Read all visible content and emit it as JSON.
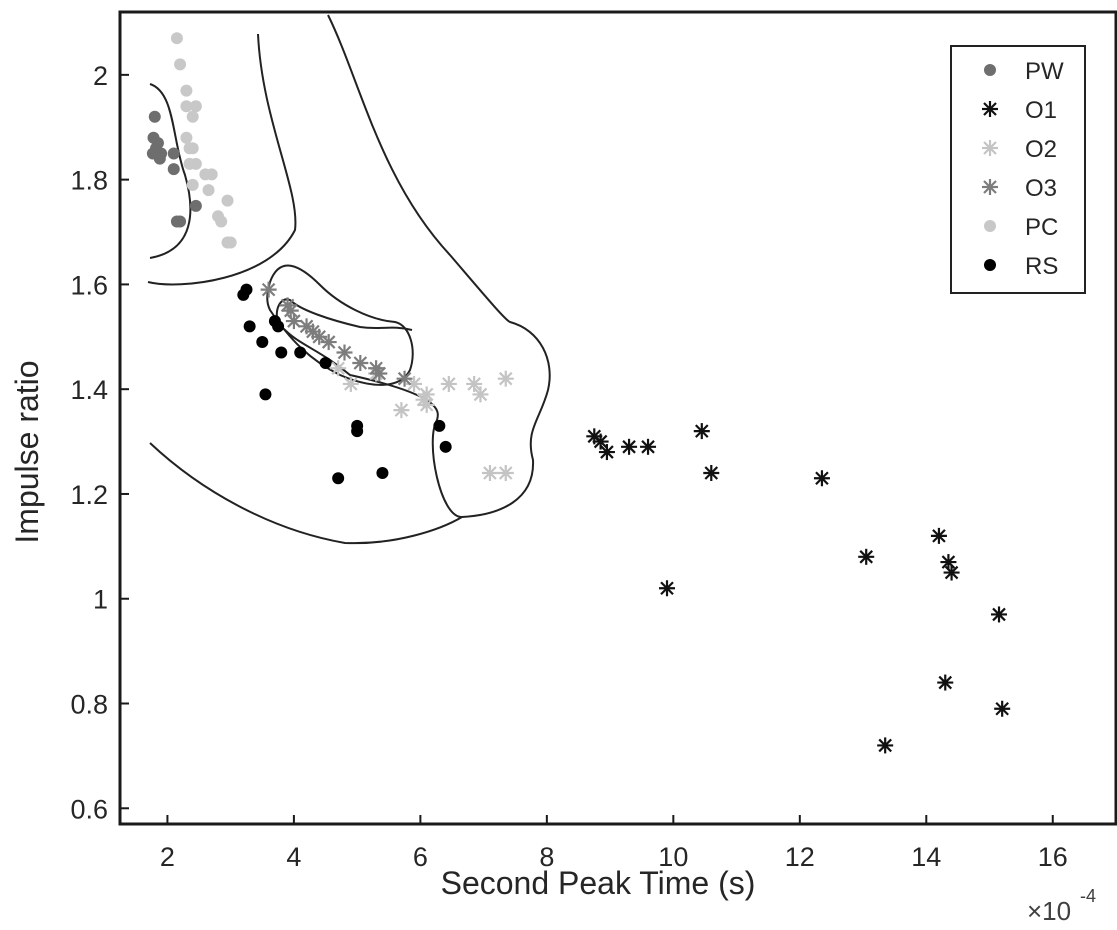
{
  "chart_data": {
    "type": "scatter",
    "xlabel": "Second Peak Time (s)",
    "ylabel": "Impulse ratio",
    "x_multiplier": "×10",
    "x_multiplier_exponent": "-4",
    "xlim": [
      1.25,
      17.0
    ],
    "ylim": [
      0.57,
      2.12
    ],
    "x_ticks": [
      2,
      4,
      6,
      8,
      10,
      12,
      14,
      16
    ],
    "x_tick_labels": [
      "2",
      "4",
      "6",
      "8",
      "10",
      "12",
      "14",
      "16"
    ],
    "y_ticks": [
      0.6,
      0.8,
      1.0,
      1.2,
      1.4,
      1.6,
      1.8,
      2.0
    ],
    "y_tick_labels": [
      "0.6",
      "0.8",
      "1",
      "1.2",
      "1.4",
      "1.6",
      "1.8",
      "2"
    ],
    "grid": false,
    "legend_position": "top-right",
    "series": [
      {
        "name": "PW",
        "marker": "dot",
        "color": "#6e6e6e",
        "points": [
          [
            1.8,
            1.92
          ],
          [
            1.78,
            1.88
          ],
          [
            1.82,
            1.86
          ],
          [
            1.77,
            1.85
          ],
          [
            1.85,
            1.87
          ],
          [
            1.9,
            1.85
          ],
          [
            1.88,
            1.84
          ],
          [
            2.1,
            1.85
          ],
          [
            2.1,
            1.82
          ],
          [
            2.15,
            1.72
          ],
          [
            2.2,
            1.72
          ],
          [
            2.45,
            1.75
          ]
        ]
      },
      {
        "name": "O1",
        "marker": "asterisk",
        "color": "#111111",
        "points": [
          [
            8.75,
            1.31
          ],
          [
            8.85,
            1.3
          ],
          [
            8.95,
            1.28
          ],
          [
            9.3,
            1.29
          ],
          [
            9.6,
            1.29
          ],
          [
            10.45,
            1.32
          ],
          [
            10.6,
            1.24
          ],
          [
            12.35,
            1.23
          ],
          [
            9.9,
            1.02
          ],
          [
            13.05,
            1.08
          ],
          [
            14.2,
            1.12
          ],
          [
            14.35,
            1.07
          ],
          [
            14.4,
            1.05
          ],
          [
            15.15,
            0.97
          ],
          [
            14.3,
            0.84
          ],
          [
            15.2,
            0.79
          ],
          [
            13.35,
            0.72
          ]
        ]
      },
      {
        "name": "O2",
        "marker": "asterisk",
        "color": "#c4c4c4",
        "points": [
          [
            4.7,
            1.44
          ],
          [
            4.9,
            1.41
          ],
          [
            5.3,
            1.43
          ],
          [
            5.7,
            1.36
          ],
          [
            5.9,
            1.41
          ],
          [
            6.05,
            1.38
          ],
          [
            6.1,
            1.39
          ],
          [
            6.1,
            1.37
          ],
          [
            6.45,
            1.41
          ],
          [
            6.85,
            1.41
          ],
          [
            6.95,
            1.39
          ],
          [
            7.35,
            1.42
          ],
          [
            7.1,
            1.24
          ],
          [
            7.35,
            1.24
          ]
        ]
      },
      {
        "name": "O3",
        "marker": "asterisk",
        "color": "#7d7d7d",
        "points": [
          [
            3.6,
            1.59
          ],
          [
            3.9,
            1.56
          ],
          [
            3.95,
            1.55
          ],
          [
            4.0,
            1.53
          ],
          [
            4.2,
            1.52
          ],
          [
            4.3,
            1.51
          ],
          [
            4.4,
            1.5
          ],
          [
            4.55,
            1.49
          ],
          [
            4.8,
            1.47
          ],
          [
            5.05,
            1.45
          ],
          [
            5.3,
            1.44
          ],
          [
            5.35,
            1.43
          ],
          [
            5.75,
            1.42
          ]
        ]
      },
      {
        "name": "PC",
        "marker": "dot",
        "color": "#c8c8c8",
        "points": [
          [
            2.15,
            2.07
          ],
          [
            2.2,
            2.02
          ],
          [
            2.3,
            1.97
          ],
          [
            2.3,
            1.94
          ],
          [
            2.45,
            1.94
          ],
          [
            2.4,
            1.92
          ],
          [
            2.3,
            1.88
          ],
          [
            2.35,
            1.86
          ],
          [
            2.4,
            1.86
          ],
          [
            2.35,
            1.83
          ],
          [
            2.45,
            1.83
          ],
          [
            2.6,
            1.81
          ],
          [
            2.7,
            1.81
          ],
          [
            2.4,
            1.79
          ],
          [
            2.65,
            1.78
          ],
          [
            2.8,
            1.73
          ],
          [
            2.85,
            1.72
          ],
          [
            2.95,
            1.76
          ],
          [
            2.95,
            1.68
          ],
          [
            3.0,
            1.68
          ]
        ]
      },
      {
        "name": "RS",
        "marker": "dot",
        "color": "#000000",
        "points": [
          [
            3.2,
            1.58
          ],
          [
            3.25,
            1.59
          ],
          [
            3.3,
            1.52
          ],
          [
            3.5,
            1.49
          ],
          [
            3.55,
            1.39
          ],
          [
            3.7,
            1.53
          ],
          [
            3.75,
            1.52
          ],
          [
            3.8,
            1.47
          ],
          [
            4.1,
            1.47
          ],
          [
            4.5,
            1.45
          ],
          [
            5.0,
            1.33
          ],
          [
            5.0,
            1.32
          ],
          [
            4.7,
            1.23
          ],
          [
            5.4,
            1.24
          ],
          [
            6.3,
            1.33
          ],
          [
            6.4,
            1.29
          ]
        ]
      }
    ]
  }
}
